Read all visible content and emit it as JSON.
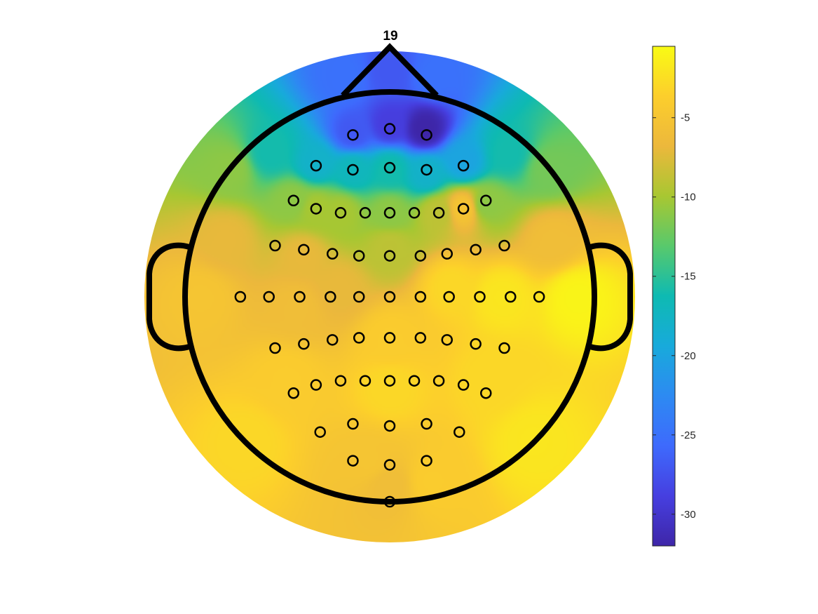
{
  "chart_data": {
    "type": "heatmap",
    "subtype": "scalp-topography",
    "title": "19",
    "colormap": "parula",
    "color_range": [
      -32.0,
      -0.5
    ],
    "colorbar": {
      "placement": "right",
      "ticks": [
        -5,
        -10,
        -15,
        -20,
        -25,
        -30
      ],
      "tick_labels": [
        "-5",
        "-10",
        "-15",
        "-20",
        "-25",
        "-30"
      ]
    },
    "head_outline": {
      "nose": true,
      "ears": true
    },
    "electrodes": [
      [
        -0.18,
        0.79
      ],
      [
        0.0,
        0.82
      ],
      [
        0.18,
        0.79
      ],
      [
        -0.36,
        0.64
      ],
      [
        -0.18,
        0.62
      ],
      [
        0.0,
        0.63
      ],
      [
        0.18,
        0.62
      ],
      [
        0.36,
        0.64
      ],
      [
        -0.47,
        0.47
      ],
      [
        -0.36,
        0.43
      ],
      [
        -0.24,
        0.41
      ],
      [
        -0.12,
        0.41
      ],
      [
        0.0,
        0.41
      ],
      [
        0.12,
        0.41
      ],
      [
        0.24,
        0.41
      ],
      [
        0.36,
        0.43
      ],
      [
        0.47,
        0.47
      ],
      [
        -0.56,
        0.25
      ],
      [
        -0.42,
        0.23
      ],
      [
        -0.28,
        0.21
      ],
      [
        -0.15,
        0.2
      ],
      [
        0.0,
        0.2
      ],
      [
        0.15,
        0.2
      ],
      [
        0.28,
        0.21
      ],
      [
        0.42,
        0.23
      ],
      [
        0.56,
        0.25
      ],
      [
        -0.73,
        0.0
      ],
      [
        -0.59,
        0.0
      ],
      [
        -0.44,
        0.0
      ],
      [
        -0.29,
        0.0
      ],
      [
        -0.15,
        0.0
      ],
      [
        0.0,
        0.0
      ],
      [
        0.15,
        0.0
      ],
      [
        0.29,
        0.0
      ],
      [
        0.44,
        0.0
      ],
      [
        0.59,
        0.0
      ],
      [
        0.73,
        0.0
      ],
      [
        -0.56,
        -0.25
      ],
      [
        -0.42,
        -0.23
      ],
      [
        -0.28,
        -0.21
      ],
      [
        -0.15,
        -0.2
      ],
      [
        0.0,
        -0.2
      ],
      [
        0.15,
        -0.2
      ],
      [
        0.28,
        -0.21
      ],
      [
        0.42,
        -0.23
      ],
      [
        0.56,
        -0.25
      ],
      [
        -0.47,
        -0.47
      ],
      [
        -0.36,
        -0.43
      ],
      [
        -0.24,
        -0.41
      ],
      [
        -0.12,
        -0.41
      ],
      [
        0.0,
        -0.41
      ],
      [
        0.12,
        -0.41
      ],
      [
        0.24,
        -0.41
      ],
      [
        0.36,
        -0.43
      ],
      [
        0.47,
        -0.47
      ],
      [
        -0.34,
        -0.66
      ],
      [
        -0.18,
        -0.62
      ],
      [
        0.0,
        -0.63
      ],
      [
        0.18,
        -0.62
      ],
      [
        0.34,
        -0.66
      ],
      [
        -0.18,
        -0.8
      ],
      [
        0.0,
        -0.82
      ],
      [
        0.18,
        -0.8
      ],
      [
        0.0,
        -1.0
      ]
    ],
    "field_sources": [
      {
        "x": 0.17,
        "y": 0.82,
        "value": -32
      },
      {
        "x": 0.0,
        "y": 0.84,
        "value": -29
      },
      {
        "x": -0.18,
        "y": 0.8,
        "value": -27
      },
      {
        "x": 0.0,
        "y": 1.1,
        "value": -27
      },
      {
        "x": -0.22,
        "y": 1.07,
        "value": -25
      },
      {
        "x": 0.22,
        "y": 1.07,
        "value": -25
      },
      {
        "x": 0.36,
        "y": 0.66,
        "value": -20
      },
      {
        "x": -0.36,
        "y": 0.65,
        "value": -18
      },
      {
        "x": -0.18,
        "y": 0.62,
        "value": -17
      },
      {
        "x": 0.0,
        "y": 0.62,
        "value": -16
      },
      {
        "x": 0.18,
        "y": 0.6,
        "value": -18
      },
      {
        "x": -0.58,
        "y": 0.7,
        "value": -16
      },
      {
        "x": 0.58,
        "y": 0.7,
        "value": -16
      },
      {
        "x": 0.78,
        "y": 0.62,
        "value": -12
      },
      {
        "x": -0.78,
        "y": 0.62,
        "value": -11
      },
      {
        "x": -0.47,
        "y": 0.47,
        "value": -11
      },
      {
        "x": 0.47,
        "y": 0.45,
        "value": -11
      },
      {
        "x": -0.36,
        "y": 0.43,
        "value": -10
      },
      {
        "x": -0.24,
        "y": 0.41,
        "value": -10
      },
      {
        "x": 0.0,
        "y": 0.41,
        "value": -11
      },
      {
        "x": 0.24,
        "y": 0.41,
        "value": -9
      },
      {
        "x": 0.36,
        "y": 0.43,
        "value": -5
      },
      {
        "x": 0.0,
        "y": 0.24,
        "value": -9
      },
      {
        "x": -0.42,
        "y": 0.2,
        "value": -7
      },
      {
        "x": -0.8,
        "y": 0.28,
        "value": -7
      },
      {
        "x": 0.8,
        "y": 0.28,
        "value": -6
      },
      {
        "x": -0.25,
        "y": 0.05,
        "value": -7
      },
      {
        "x": -0.45,
        "y": -0.05,
        "value": -6
      },
      {
        "x": 0.3,
        "y": 0.05,
        "value": -3
      },
      {
        "x": 0.55,
        "y": 0.0,
        "value": -2
      },
      {
        "x": 0.92,
        "y": 0.0,
        "value": -1
      },
      {
        "x": -0.92,
        "y": 0.0,
        "value": -5
      },
      {
        "x": 0.0,
        "y": -0.2,
        "value": -4
      },
      {
        "x": -0.5,
        "y": -0.4,
        "value": -4
      },
      {
        "x": 0.5,
        "y": -0.4,
        "value": -3
      },
      {
        "x": 0.0,
        "y": -0.45,
        "value": -3
      },
      {
        "x": -0.7,
        "y": -0.7,
        "value": -3
      },
      {
        "x": 0.7,
        "y": -0.7,
        "value": -2
      },
      {
        "x": -0.1,
        "y": -0.8,
        "value": -5
      },
      {
        "x": 0.0,
        "y": -0.92,
        "value": -6
      },
      {
        "x": 0.2,
        "y": -0.9,
        "value": -4
      }
    ],
    "colors": {
      "outline": "#000000",
      "electrode": "#000000",
      "colorbar_border": "#262626"
    }
  }
}
